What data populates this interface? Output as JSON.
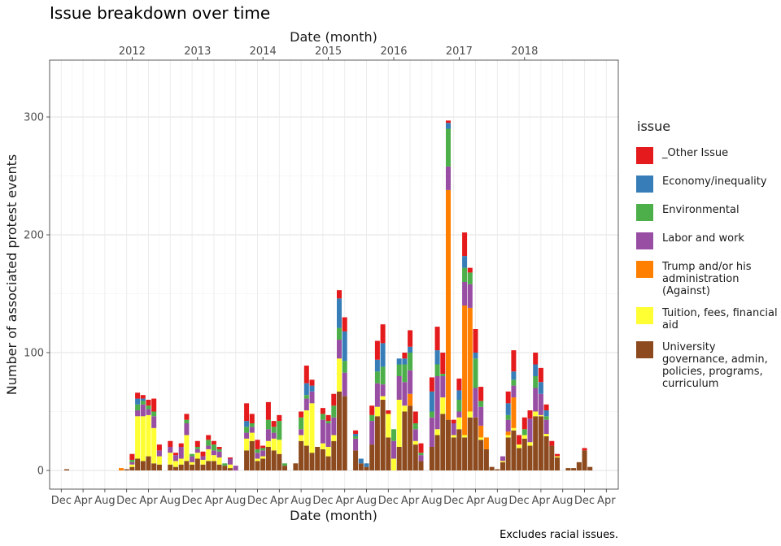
{
  "chart_data": {
    "type": "bar",
    "stacked": true,
    "title": "Issue breakdown over time",
    "caption": "Excludes racial issues.",
    "xlabel": "Date (month)",
    "xlabel_top": "Date (month)",
    "ylabel": "Number of associated protest events",
    "ylim": [
      -12,
      348
    ],
    "yticks": [
      0,
      100,
      200,
      300
    ],
    "grid": true,
    "legend_title": "issue",
    "legend_position": "right",
    "x_start_month": "2011-01",
    "bottom_ticks": [
      {
        "date": "2010-12",
        "label": "Dec"
      },
      {
        "date": "2011-04",
        "label": "Apr"
      },
      {
        "date": "2011-08",
        "label": "Aug"
      },
      {
        "date": "2011-12",
        "label": "Dec"
      },
      {
        "date": "2012-04",
        "label": "Apr"
      },
      {
        "date": "2012-08",
        "label": "Aug"
      },
      {
        "date": "2012-12",
        "label": "Dec"
      },
      {
        "date": "2013-04",
        "label": "Apr"
      },
      {
        "date": "2013-08",
        "label": "Aug"
      },
      {
        "date": "2013-12",
        "label": "Dec"
      },
      {
        "date": "2014-04",
        "label": "Apr"
      },
      {
        "date": "2014-08",
        "label": "Aug"
      },
      {
        "date": "2014-12",
        "label": "Dec"
      },
      {
        "date": "2015-04",
        "label": "Apr"
      },
      {
        "date": "2015-08",
        "label": "Aug"
      },
      {
        "date": "2015-12",
        "label": "Dec"
      },
      {
        "date": "2016-04",
        "label": "Apr"
      },
      {
        "date": "2016-08",
        "label": "Aug"
      },
      {
        "date": "2016-12",
        "label": "Dec"
      },
      {
        "date": "2017-04",
        "label": "Apr"
      },
      {
        "date": "2017-08",
        "label": "Aug"
      },
      {
        "date": "2017-12",
        "label": "Dec"
      },
      {
        "date": "2018-04",
        "label": "Apr"
      },
      {
        "date": "2018-08",
        "label": "Aug"
      },
      {
        "date": "2018-12",
        "label": "Dec"
      },
      {
        "date": "2019-04",
        "label": "Apr"
      }
    ],
    "top_ticks": [
      {
        "date": "2012-01",
        "label": "2012"
      },
      {
        "date": "2013-01",
        "label": "2013"
      },
      {
        "date": "2014-01",
        "label": "2014"
      },
      {
        "date": "2015-01",
        "label": "2015"
      },
      {
        "date": "2016-01",
        "label": "2016"
      },
      {
        "date": "2017-01",
        "label": "2017"
      },
      {
        "date": "2018-01",
        "label": "2018"
      }
    ],
    "series": [
      {
        "name": "University governance, admin, policies, programs, curriculum",
        "color": "#8C4A1E",
        "values": [
          1,
          0,
          0,
          0,
          0,
          0,
          0,
          0,
          0,
          0,
          0,
          1,
          3,
          10,
          8,
          12,
          6,
          5,
          0,
          5,
          3,
          5,
          8,
          5,
          10,
          5,
          8,
          8,
          5,
          4,
          2,
          0,
          0,
          17,
          25,
          8,
          10,
          20,
          17,
          14,
          4,
          0,
          6,
          25,
          21,
          15,
          20,
          18,
          12,
          25,
          67,
          63,
          0,
          17,
          6,
          3,
          22,
          46,
          60,
          28,
          0,
          20,
          50,
          55,
          22,
          8,
          0,
          20,
          30,
          48,
          43,
          28,
          35,
          28,
          45,
          45,
          26,
          18,
          3,
          1,
          7,
          28,
          34,
          19,
          27,
          21,
          46,
          46,
          29,
          21,
          11,
          0,
          2,
          2,
          7,
          17,
          3,
          0
        ]
      },
      {
        "name": "Tuition, fees, financial aid",
        "color": "#FFFF33",
        "values": [
          0,
          0,
          0,
          0,
          0,
          0,
          0,
          0,
          0,
          0,
          0,
          0,
          2,
          36,
          38,
          35,
          30,
          7,
          0,
          10,
          5,
          5,
          22,
          2,
          5,
          4,
          10,
          5,
          6,
          0,
          3,
          0,
          0,
          10,
          7,
          2,
          2,
          5,
          10,
          12,
          0,
          0,
          0,
          5,
          30,
          42,
          0,
          5,
          8,
          5,
          28,
          0,
          0,
          0,
          0,
          0,
          0,
          8,
          3,
          20,
          10,
          40,
          5,
          0,
          3,
          0,
          0,
          0,
          5,
          14,
          0,
          2,
          10,
          2,
          5,
          0,
          2,
          0,
          0,
          0,
          1,
          2,
          2,
          3,
          3,
          3,
          4,
          1,
          2,
          0,
          1,
          0,
          0,
          0,
          0,
          0,
          0,
          0
        ]
      },
      {
        "name": "Trump and/or his administration (Against)",
        "color": "#FF7F00",
        "values": [
          0,
          0,
          0,
          0,
          0,
          0,
          0,
          0,
          0,
          0,
          2,
          0,
          0,
          0,
          0,
          0,
          0,
          0,
          0,
          0,
          0,
          0,
          0,
          0,
          0,
          0,
          0,
          0,
          0,
          0,
          0,
          0,
          0,
          0,
          0,
          0,
          0,
          0,
          0,
          0,
          0,
          0,
          0,
          0,
          0,
          0,
          0,
          0,
          0,
          0,
          0,
          0,
          0,
          0,
          0,
          0,
          0,
          0,
          0,
          0,
          0,
          0,
          0,
          10,
          0,
          0,
          0,
          0,
          0,
          0,
          195,
          0,
          0,
          110,
          88,
          0,
          10,
          10,
          0,
          0,
          0,
          3,
          26,
          0,
          0,
          0,
          0,
          0,
          0,
          0,
          0,
          0,
          0,
          0,
          0,
          0,
          0,
          0
        ]
      },
      {
        "name": "Labor and work",
        "color": "#984EA3",
        "values": [
          0,
          0,
          0,
          0,
          0,
          0,
          0,
          0,
          0,
          0,
          0,
          0,
          2,
          5,
          10,
          5,
          10,
          5,
          0,
          5,
          5,
          10,
          10,
          5,
          3,
          3,
          3,
          4,
          5,
          0,
          5,
          4,
          0,
          5,
          5,
          5,
          5,
          10,
          5,
          0,
          0,
          0,
          0,
          5,
          10,
          10,
          0,
          20,
          20,
          15,
          16,
          20,
          0,
          10,
          0,
          0,
          20,
          20,
          10,
          0,
          15,
          20,
          20,
          20,
          10,
          5,
          0,
          25,
          45,
          18,
          20,
          10,
          5,
          20,
          20,
          25,
          16,
          0,
          0,
          0,
          4,
          10,
          10,
          0,
          0,
          20,
          20,
          18,
          12,
          0,
          0,
          0,
          0,
          0,
          0,
          0,
          0,
          0
        ]
      },
      {
        "name": "Environmental",
        "color": "#4DAF4A",
        "values": [
          0,
          0,
          0,
          0,
          0,
          0,
          0,
          0,
          0,
          0,
          0,
          0,
          2,
          5,
          3,
          3,
          4,
          0,
          0,
          0,
          0,
          0,
          3,
          2,
          2,
          0,
          5,
          5,
          2,
          2,
          0,
          0,
          0,
          5,
          3,
          3,
          2,
          8,
          5,
          16,
          2,
          0,
          0,
          10,
          3,
          0,
          0,
          5,
          2,
          10,
          10,
          10,
          0,
          2,
          0,
          0,
          5,
          10,
          15,
          0,
          10,
          10,
          15,
          15,
          5,
          2,
          0,
          5,
          10,
          2,
          32,
          0,
          10,
          12,
          10,
          25,
          5,
          0,
          0,
          0,
          0,
          4,
          5,
          0,
          5,
          0,
          10,
          0,
          3,
          0,
          0,
          0,
          0,
          0,
          0,
          0,
          0,
          0
        ]
      },
      {
        "name": "Economy/inequality",
        "color": "#377EB8",
        "values": [
          0,
          0,
          0,
          0,
          0,
          0,
          0,
          0,
          0,
          0,
          0,
          0,
          0,
          5,
          2,
          0,
          0,
          0,
          0,
          0,
          0,
          0,
          0,
          0,
          0,
          0,
          0,
          0,
          0,
          0,
          0,
          0,
          0,
          5,
          0,
          0,
          0,
          0,
          0,
          0,
          0,
          0,
          0,
          0,
          10,
          5,
          0,
          0,
          0,
          0,
          25,
          25,
          0,
          2,
          4,
          3,
          0,
          10,
          20,
          0,
          0,
          5,
          5,
          5,
          0,
          0,
          0,
          17,
          12,
          0,
          5,
          0,
          8,
          10,
          0,
          5,
          0,
          0,
          0,
          0,
          0,
          10,
          7,
          0,
          0,
          0,
          10,
          10,
          5,
          0,
          0,
          0,
          0,
          0,
          0,
          0,
          0,
          0
        ]
      },
      {
        "name": "_Other Issue",
        "color": "#E41A1C",
        "values": [
          0,
          0,
          0,
          0,
          0,
          0,
          0,
          0,
          0,
          0,
          0,
          0,
          5,
          5,
          3,
          5,
          11,
          5,
          0,
          5,
          2,
          3,
          5,
          0,
          5,
          4,
          4,
          3,
          2,
          0,
          1,
          0,
          0,
          15,
          8,
          8,
          2,
          15,
          5,
          5,
          0,
          0,
          0,
          5,
          15,
          5,
          0,
          5,
          5,
          10,
          7,
          12,
          0,
          3,
          0,
          0,
          8,
          16,
          16,
          3,
          0,
          0,
          5,
          14,
          10,
          8,
          0,
          12,
          20,
          18,
          2,
          3,
          10,
          20,
          4,
          20,
          12,
          0,
          0,
          0,
          0,
          10,
          18,
          8,
          10,
          7,
          10,
          12,
          5,
          4,
          2,
          0,
          0,
          0,
          0,
          2,
          0,
          0
        ]
      }
    ]
  }
}
